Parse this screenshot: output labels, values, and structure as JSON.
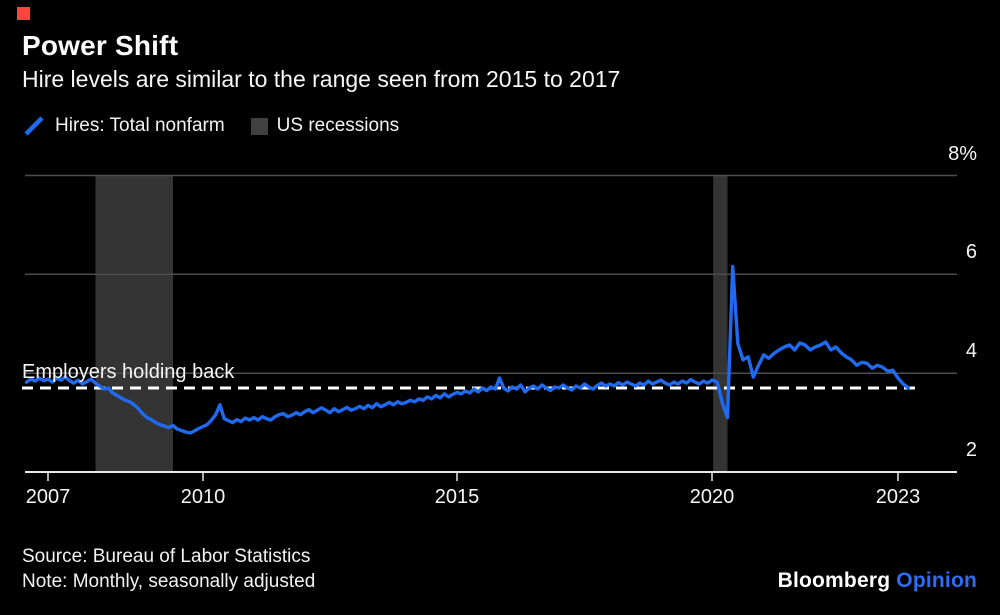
{
  "colors": {
    "background": "#000000",
    "line_blue": "#1f6af1",
    "recession_band": "#343434",
    "gridline": "#4d4d4d",
    "axis": "#e8e8e8",
    "text": "#ffffff",
    "reference_line": "#ffffff",
    "legend_box": "#404040",
    "brand_mark_red": "#ff433d",
    "brand_opinion_blue": "#2d6df3"
  },
  "header": {
    "title": "Power Shift",
    "subtitle": "Hire levels are similar to the range seen from 2015 to 2017"
  },
  "legend": [
    {
      "label": "Hires: Total nonfarm",
      "type": "line"
    },
    {
      "label": "US recessions",
      "type": "box"
    }
  ],
  "footer": {
    "source": "Source: Bureau of Labor Statistics",
    "note": "Note: Monthly, seasonally adjusted",
    "brand": "Bloomberg",
    "brand_suffix": "Opinion"
  },
  "chart_data": {
    "type": "line",
    "title": "Power Shift",
    "unit": "%",
    "y_axis": {
      "position": "right",
      "ticks": [
        {
          "value": 8,
          "label": "8%"
        },
        {
          "value": 6,
          "label": "6"
        },
        {
          "value": 4,
          "label": "4"
        },
        {
          "value": 2,
          "label": "2"
        }
      ],
      "range": [
        2,
        8
      ]
    },
    "x_axis": {
      "ticks": [
        2007,
        2010,
        2015,
        2020,
        2023
      ]
    },
    "reference_line": {
      "label": "Employers holding back",
      "value": 3.7,
      "style": "dashed"
    },
    "recession_bands": [
      {
        "from": 2007.92,
        "to": 2009.42
      },
      {
        "from": 2020.02,
        "to": 2020.25
      }
    ],
    "series": [
      {
        "name": "Hires: Total nonfarm",
        "frequency": "monthly",
        "start": {
          "year": 2006,
          "month": 8
        },
        "values": [
          3.82,
          3.88,
          3.84,
          3.9,
          3.85,
          3.88,
          3.82,
          3.9,
          3.86,
          3.92,
          3.85,
          3.8,
          3.86,
          3.78,
          3.83,
          3.88,
          3.8,
          3.74,
          3.68,
          3.7,
          3.6,
          3.55,
          3.5,
          3.45,
          3.42,
          3.36,
          3.28,
          3.18,
          3.1,
          3.06,
          3.0,
          2.96,
          2.93,
          2.9,
          2.94,
          2.87,
          2.84,
          2.81,
          2.79,
          2.83,
          2.88,
          2.92,
          2.96,
          3.05,
          3.16,
          3.36,
          3.08,
          3.04,
          3.0,
          3.06,
          3.02,
          3.09,
          3.05,
          3.1,
          3.05,
          3.12,
          3.08,
          3.05,
          3.12,
          3.16,
          3.18,
          3.12,
          3.15,
          3.2,
          3.16,
          3.22,
          3.26,
          3.2,
          3.25,
          3.3,
          3.25,
          3.2,
          3.28,
          3.22,
          3.26,
          3.31,
          3.25,
          3.28,
          3.33,
          3.28,
          3.35,
          3.3,
          3.38,
          3.32,
          3.36,
          3.41,
          3.36,
          3.42,
          3.38,
          3.41,
          3.45,
          3.42,
          3.48,
          3.45,
          3.52,
          3.48,
          3.55,
          3.5,
          3.58,
          3.52,
          3.57,
          3.61,
          3.58,
          3.64,
          3.6,
          3.68,
          3.62,
          3.7,
          3.65,
          3.72,
          3.68,
          3.9,
          3.7,
          3.64,
          3.72,
          3.68,
          3.76,
          3.62,
          3.7,
          3.74,
          3.68,
          3.76,
          3.7,
          3.65,
          3.72,
          3.7,
          3.76,
          3.7,
          3.66,
          3.74,
          3.7,
          3.78,
          3.72,
          3.68,
          3.75,
          3.8,
          3.74,
          3.78,
          3.74,
          3.81,
          3.76,
          3.82,
          3.78,
          3.74,
          3.8,
          3.76,
          3.84,
          3.78,
          3.82,
          3.86,
          3.8,
          3.76,
          3.82,
          3.78,
          3.84,
          3.8,
          3.87,
          3.82,
          3.78,
          3.84,
          3.8,
          3.86,
          3.82,
          3.4,
          3.1,
          6.16,
          4.6,
          4.27,
          4.33,
          3.92,
          4.16,
          4.37,
          4.3,
          4.4,
          4.47,
          4.53,
          4.57,
          4.47,
          4.61,
          4.57,
          4.47,
          4.53,
          4.57,
          4.63,
          4.47,
          4.53,
          4.41,
          4.33,
          4.27,
          4.16,
          4.22,
          4.2,
          4.1,
          4.16,
          4.12,
          4.04,
          4.06,
          3.9,
          3.78,
          3.7
        ]
      }
    ]
  }
}
